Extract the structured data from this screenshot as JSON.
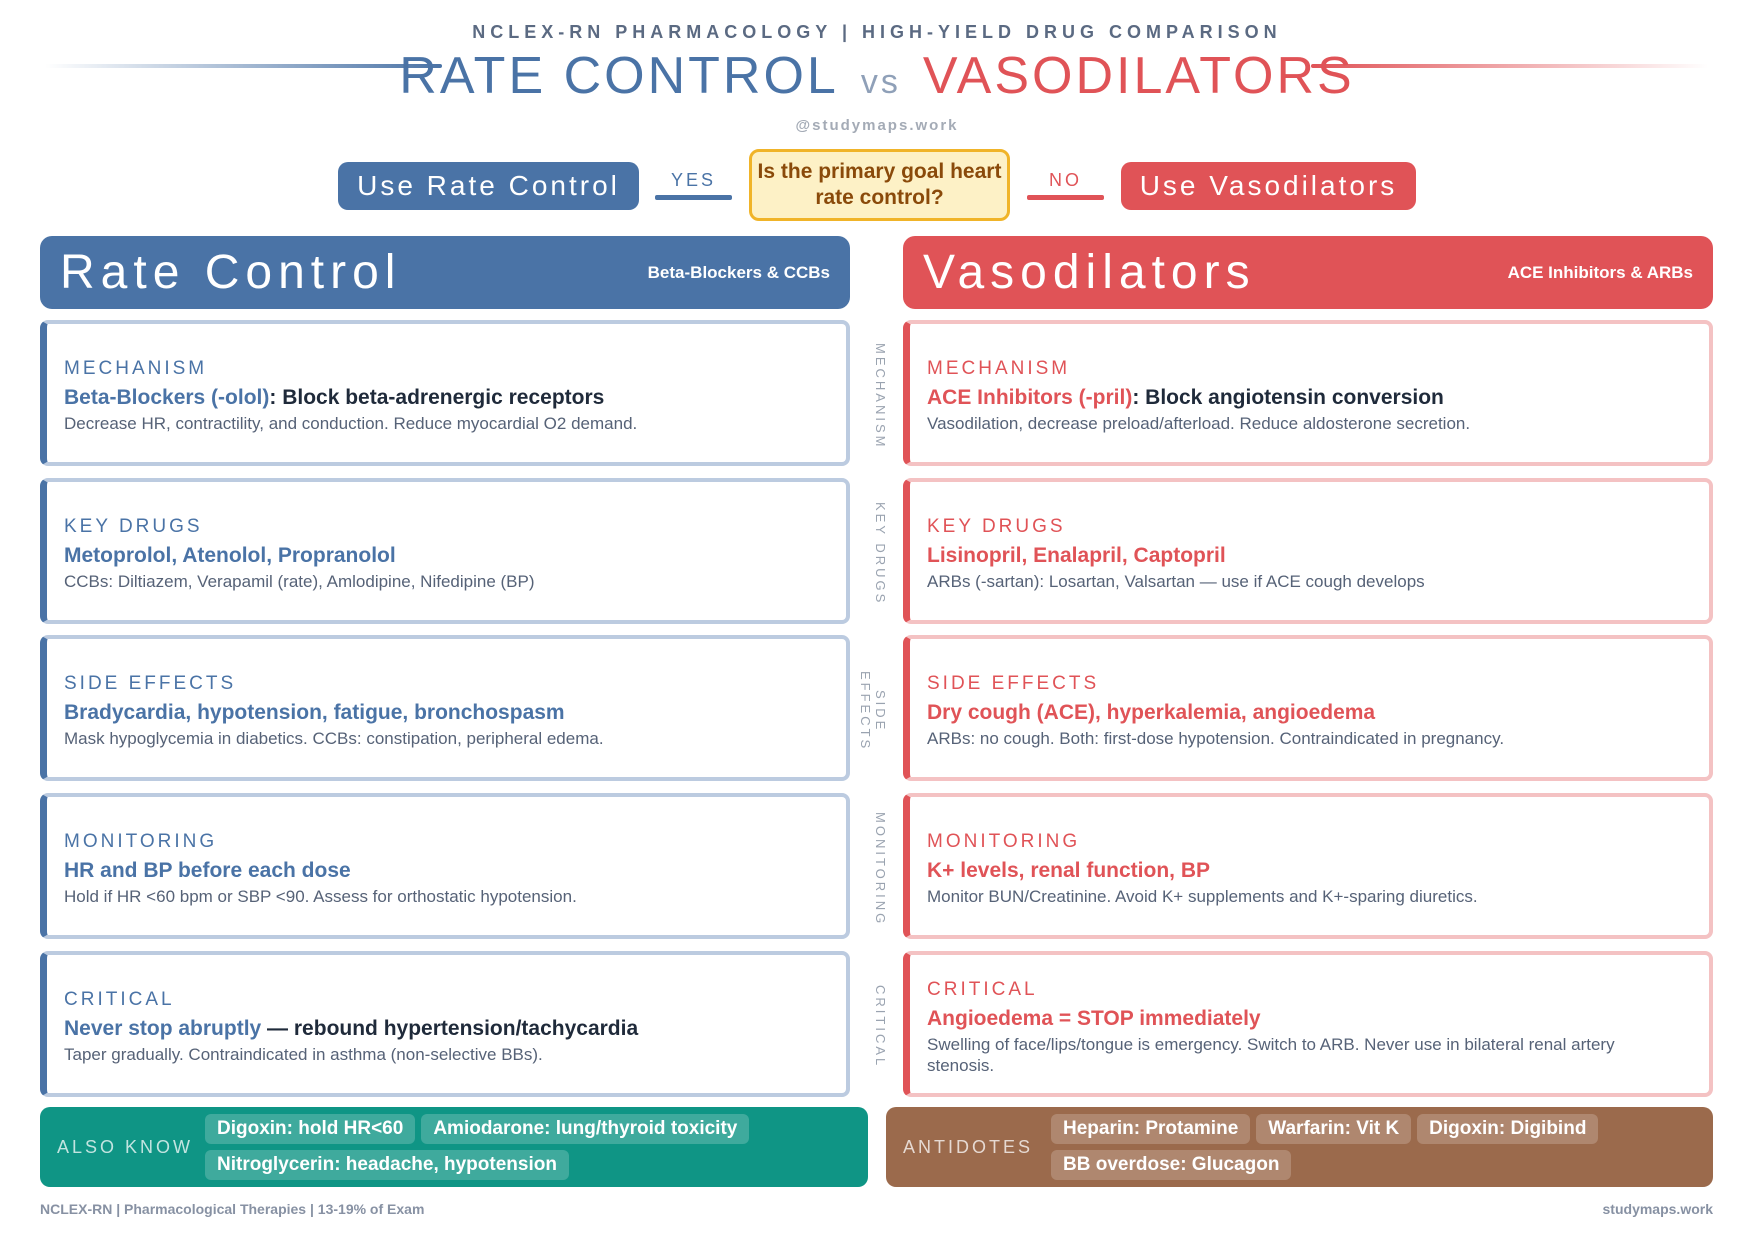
{
  "header": {
    "subtitle": "NCLEX-RN PHARMACOLOGY | HIGH-YIELD DRUG COMPARISON",
    "title_left": "RATE CONTROL",
    "title_vs": "vs",
    "title_right": "VASODILATORS",
    "handle": "@studymaps.work"
  },
  "decision": {
    "left_button": "Use Rate Control",
    "yes": "YES",
    "question": "Is the primary goal heart rate control?",
    "no": "NO",
    "right_button": "Use Vasodilators"
  },
  "colors": {
    "rate_control": "#4a73a6",
    "vasodilators": "#e05357",
    "decision": "#f0b429",
    "also_know": "#0f9585",
    "antidotes": "#9b6a4c"
  },
  "left": {
    "title": "Rate Control",
    "subtitle": "Beta-Blockers & CCBs",
    "cards": [
      {
        "label": "MECHANISM",
        "em": "Beta-Blockers (-olol)",
        "main": ": Block beta-adrenergic receptors",
        "sub": "Decrease HR, contractility, and conduction. Reduce myocardial O2 demand."
      },
      {
        "label": "KEY DRUGS",
        "em": "Metoprolol, Atenolol, Propranolol",
        "main": "",
        "sub": "CCBs: Diltiazem, Verapamil (rate), Amlodipine, Nifedipine (BP)"
      },
      {
        "label": "SIDE EFFECTS",
        "em": "Bradycardia, hypotension, fatigue, bronchospasm",
        "main": "",
        "sub": "Mask hypoglycemia in diabetics. CCBs: constipation, peripheral edema."
      },
      {
        "label": "MONITORING",
        "em": "HR and BP before each dose",
        "main": "",
        "sub": "Hold if HR <60 bpm or SBP <90. Assess for orthostatic hypotension."
      },
      {
        "label": "CRITICAL",
        "em": "Never stop abruptly",
        "main": " — rebound hypertension/tachycardia",
        "sub": "Taper gradually. Contraindicated in asthma (non-selective BBs)."
      }
    ]
  },
  "right": {
    "title": "Vasodilators",
    "subtitle": "ACE Inhibitors & ARBs",
    "cards": [
      {
        "label": "MECHANISM",
        "em": "ACE Inhibitors (-pril)",
        "main": ": Block angiotensin conversion",
        "sub": "Vasodilation, decrease preload/afterload. Reduce aldosterone secretion."
      },
      {
        "label": "KEY DRUGS",
        "em": "Lisinopril, Enalapril, Captopril",
        "main": "",
        "sub": "ARBs (-sartan): Losartan, Valsartan — use if ACE cough develops"
      },
      {
        "label": "SIDE EFFECTS",
        "em": "Dry cough (ACE), hyperkalemia, angioedema",
        "main": "",
        "sub": "ARBs: no cough. Both: first-dose hypotension. Contraindicated in pregnancy."
      },
      {
        "label": "MONITORING",
        "em": "K+ levels, renal function, BP",
        "main": "",
        "sub": "Monitor BUN/Creatinine. Avoid K+ supplements and K+-sparing diuretics."
      },
      {
        "label": "CRITICAL",
        "em": "Angioedema = STOP immediately",
        "main": "",
        "sub": "Swelling of face/lips/tongue is emergency. Switch to ARB. Never use in bilateral renal artery stenosis."
      }
    ]
  },
  "side_labels": [
    "MECHANISM",
    "KEY DRUGS",
    "SIDE EFFECTS",
    "MONITORING",
    "CRITICAL"
  ],
  "also_know": {
    "title": "ALSO KNOW",
    "items": [
      "Digoxin: hold HR<60",
      "Amiodarone: lung/thyroid toxicity",
      "Nitroglycerin: headache, hypotension"
    ]
  },
  "antidotes": {
    "title": "ANTIDOTES",
    "items": [
      "Heparin: Protamine",
      "Warfarin: Vit K",
      "Digoxin: Digibind",
      "BB overdose: Glucagon"
    ]
  },
  "footer": {
    "left": "NCLEX-RN | Pharmacological Therapies | 13-19% of Exam",
    "right": "studymaps.work"
  }
}
